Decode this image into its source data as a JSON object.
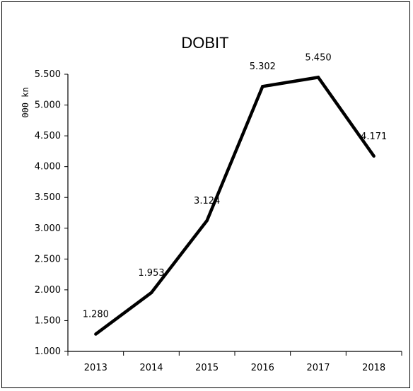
{
  "chart_data": {
    "type": "line",
    "title": "DOBIT",
    "xlabel": "",
    "ylabel": "000 kn",
    "categories": [
      "2013",
      "2014",
      "2015",
      "2016",
      "2017",
      "2018"
    ],
    "series": [
      {
        "values": [
          1280,
          1953,
          3124,
          5302,
          5450,
          4171
        ],
        "data_labels": [
          "1.280",
          "1.953",
          "3.124",
          "5.302",
          "5.450",
          "4.171"
        ]
      }
    ],
    "yticks": [
      "1.000",
      "1.500",
      "2.000",
      "2.500",
      "3.000",
      "3.500",
      "4.000",
      "4.500",
      "5.000",
      "5.500"
    ],
    "ylim": [
      1000,
      5500
    ],
    "grid": false,
    "legend": "none",
    "line_color": "#000000"
  }
}
